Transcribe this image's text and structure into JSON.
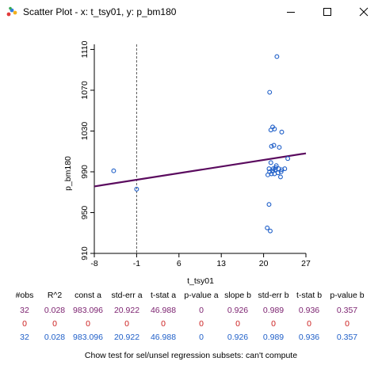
{
  "window": {
    "title": "Scatter Plot - x: t_tsy01, y: p_bm180",
    "controls": [
      "minimize",
      "maximize",
      "close"
    ]
  },
  "icons": {
    "app": "scatter-plot-app-icon",
    "minimize": "minimize-icon",
    "maximize": "maximize-icon",
    "close": "close-icon"
  },
  "colors": {
    "points": "#1f5fc8",
    "regression_line": "#5a0a5e",
    "stats_all": "#7a1f6e",
    "stats_selected": "#cc1f1f",
    "stats_unselected": "#1f5fc8"
  },
  "chart_data": {
    "type": "scatter",
    "xlabel": "t_tsy01",
    "ylabel": "p_bm180",
    "xlim": [
      -8,
      27
    ],
    "ylim": [
      910,
      1115
    ],
    "x_ticks": [
      "-8",
      "-1",
      "6",
      "13",
      "20",
      "27"
    ],
    "y_ticks": [
      "910",
      "950",
      "990",
      "1030",
      "1070",
      "1110"
    ],
    "reference_x": -1,
    "points": [
      {
        "x": -4.8,
        "y": 991
      },
      {
        "x": -1.0,
        "y": 973
      },
      {
        "x": 22.2,
        "y": 1103
      },
      {
        "x": 21.0,
        "y": 1068
      },
      {
        "x": 21.2,
        "y": 1031
      },
      {
        "x": 21.5,
        "y": 1034
      },
      {
        "x": 21.8,
        "y": 1032
      },
      {
        "x": 23.0,
        "y": 1029
      },
      {
        "x": 21.7,
        "y": 1016
      },
      {
        "x": 21.3,
        "y": 1015
      },
      {
        "x": 22.6,
        "y": 1014
      },
      {
        "x": 24.0,
        "y": 1003
      },
      {
        "x": 21.2,
        "y": 999
      },
      {
        "x": 20.9,
        "y": 993
      },
      {
        "x": 21.5,
        "y": 991
      },
      {
        "x": 22.0,
        "y": 994
      },
      {
        "x": 22.5,
        "y": 993
      },
      {
        "x": 23.0,
        "y": 992
      },
      {
        "x": 23.5,
        "y": 993
      },
      {
        "x": 20.7,
        "y": 987
      },
      {
        "x": 21.8,
        "y": 988
      },
      {
        "x": 22.4,
        "y": 989
      },
      {
        "x": 21.0,
        "y": 990
      },
      {
        "x": 22.8,
        "y": 985
      },
      {
        "x": 21.6,
        "y": 993
      },
      {
        "x": 22.1,
        "y": 996
      },
      {
        "x": 21.3,
        "y": 988
      },
      {
        "x": 22.9,
        "y": 990
      },
      {
        "x": 21.9,
        "y": 992
      },
      {
        "x": 20.9,
        "y": 958
      },
      {
        "x": 20.6,
        "y": 935
      },
      {
        "x": 21.1,
        "y": 932
      }
    ],
    "regression": {
      "intercept": 983.096,
      "slope": 0.926
    }
  },
  "stats": {
    "headers": [
      "#obs",
      "R^2",
      "const a",
      "std-err a",
      "t-stat a",
      "p-value a",
      "slope b",
      "std-err b",
      "t-stat b",
      "p-value b"
    ],
    "all": [
      "32",
      "0.028",
      "983.096",
      "20.922",
      "46.988",
      "0",
      "0.926",
      "0.989",
      "0.936",
      "0.357"
    ],
    "selected": [
      "0",
      "0",
      "0",
      "0",
      "0",
      "0",
      "0",
      "0",
      "0",
      "0"
    ],
    "unselected": [
      "32",
      "0.028",
      "983.096",
      "20.922",
      "46.988",
      "0",
      "0.926",
      "0.989",
      "0.936",
      "0.357"
    ]
  },
  "chow_text": "Chow test for sel/unsel regression subsets: can't compute"
}
